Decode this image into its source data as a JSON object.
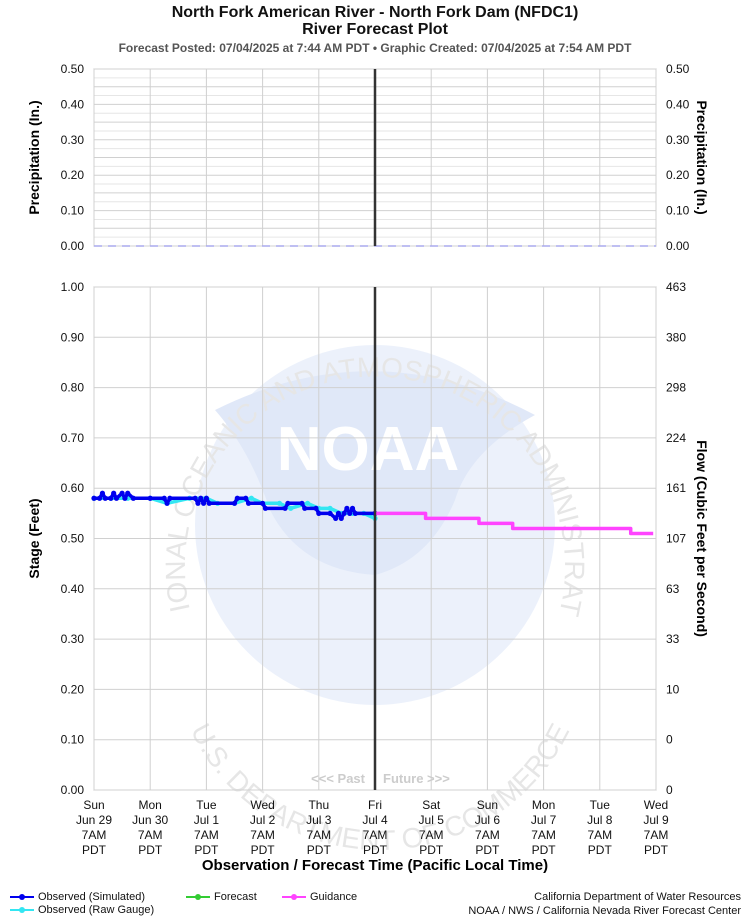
{
  "header": {
    "title": "North Fork American River - North Fork Dam (NFDC1)",
    "subtitle": "River Forecast Plot",
    "posted_line": "Forecast Posted: 07/04/2025 at 7:44 AM PDT  •  Graphic Created: 07/04/2025 at 7:54 AM PDT"
  },
  "chart_data": [
    {
      "type": "line",
      "name": "precipitation",
      "ylabel_left": "Precipitation (In.)",
      "ylabel_right": "Precipitation (In.)",
      "ylim": [
        0,
        0.5
      ],
      "yticks": [
        "0.50",
        "0.40",
        "0.30",
        "0.20",
        "0.10",
        "0.00"
      ],
      "series": [
        {
          "values": [
            0,
            0,
            0,
            0,
            0,
            0,
            0,
            0,
            0,
            0
          ],
          "color": "#aaaaee",
          "style": "dashed"
        }
      ],
      "grid": true
    },
    {
      "type": "line",
      "name": "stage-flow",
      "xlabel": "Observation / Forecast Time (Pacific Local Time)",
      "ylabel_left": "Stage (Feet)",
      "ylabel_right": "Flow (Cubic Feet per Second)",
      "ylim": [
        0,
        1.0
      ],
      "yticks_left": [
        "1.00",
        "0.90",
        "0.80",
        "0.70",
        "0.60",
        "0.50",
        "0.40",
        "0.30",
        "0.20",
        "0.10",
        "0.00"
      ],
      "yticks_right": [
        "463",
        "380",
        "298",
        "224",
        "161",
        "107",
        "63",
        "33",
        "10",
        "0",
        "0"
      ],
      "x_ticks": [
        {
          "day": "Sun",
          "date": "Jun 29",
          "time": "7AM",
          "tz": "PDT"
        },
        {
          "day": "Mon",
          "date": "Jun 30",
          "time": "7AM",
          "tz": "PDT"
        },
        {
          "day": "Tue",
          "date": "Jul 1",
          "time": "7AM",
          "tz": "PDT"
        },
        {
          "day": "Wed",
          "date": "Jul 2",
          "time": "7AM",
          "tz": "PDT"
        },
        {
          "day": "Thu",
          "date": "Jul 3",
          "time": "7AM",
          "tz": "PDT"
        },
        {
          "day": "Fri",
          "date": "Jul 4",
          "time": "7AM",
          "tz": "PDT"
        },
        {
          "day": "Sat",
          "date": "Jul 5",
          "time": "7AM",
          "tz": "PDT"
        },
        {
          "day": "Sun",
          "date": "Jul 6",
          "time": "7AM",
          "tz": "PDT"
        },
        {
          "day": "Mon",
          "date": "Jul 7",
          "time": "7AM",
          "tz": "PDT"
        },
        {
          "day": "Tue",
          "date": "Jul 8",
          "time": "7AM",
          "tz": "PDT"
        },
        {
          "day": "Wed",
          "date": "Jul 9",
          "time": "7AM",
          "tz": "PDT"
        }
      ],
      "now_marker_day": 5,
      "past_label": "<<< Past",
      "future_label": "Future >>>",
      "series": [
        {
          "name": "Observed (Raw Gauge)",
          "color": "#33e6f2",
          "points": [
            [
              0.0,
              0.58
            ],
            [
              0.3,
              0.58
            ],
            [
              0.6,
              0.58
            ],
            [
              1.0,
              0.58
            ],
            [
              1.3,
              0.57
            ],
            [
              1.7,
              0.58
            ],
            [
              2.0,
              0.58
            ],
            [
              2.2,
              0.57
            ],
            [
              2.5,
              0.57
            ],
            [
              2.8,
              0.58
            ],
            [
              3.0,
              0.57
            ],
            [
              3.3,
              0.57
            ],
            [
              3.5,
              0.56
            ],
            [
              3.8,
              0.57
            ],
            [
              4.0,
              0.56
            ],
            [
              4.2,
              0.56
            ],
            [
              4.4,
              0.55
            ],
            [
              4.6,
              0.55
            ],
            [
              4.8,
              0.55
            ],
            [
              5.0,
              0.54
            ]
          ]
        },
        {
          "name": "Observed (Simulated)",
          "color": "#0000ee",
          "points": [
            [
              0.0,
              0.58
            ],
            [
              0.1,
              0.58
            ],
            [
              0.15,
              0.59
            ],
            [
              0.2,
              0.58
            ],
            [
              0.3,
              0.58
            ],
            [
              0.35,
              0.59
            ],
            [
              0.4,
              0.58
            ],
            [
              0.5,
              0.59
            ],
            [
              0.55,
              0.58
            ],
            [
              0.6,
              0.59
            ],
            [
              0.7,
              0.58
            ],
            [
              1.0,
              0.58
            ],
            [
              1.25,
              0.58
            ],
            [
              1.3,
              0.57
            ],
            [
              1.35,
              0.58
            ],
            [
              1.8,
              0.58
            ],
            [
              1.85,
              0.57
            ],
            [
              1.9,
              0.58
            ],
            [
              1.95,
              0.57
            ],
            [
              2.0,
              0.58
            ],
            [
              2.05,
              0.57
            ],
            [
              2.5,
              0.57
            ],
            [
              2.55,
              0.58
            ],
            [
              2.7,
              0.58
            ],
            [
              2.75,
              0.57
            ],
            [
              3.0,
              0.57
            ],
            [
              3.05,
              0.56
            ],
            [
              3.4,
              0.56
            ],
            [
              3.45,
              0.57
            ],
            [
              3.7,
              0.57
            ],
            [
              3.75,
              0.56
            ],
            [
              3.95,
              0.56
            ],
            [
              4.0,
              0.55
            ],
            [
              4.2,
              0.55
            ],
            [
              4.3,
              0.54
            ],
            [
              4.35,
              0.55
            ],
            [
              4.4,
              0.54
            ],
            [
              4.45,
              0.55
            ],
            [
              4.5,
              0.56
            ],
            [
              4.55,
              0.55
            ],
            [
              4.6,
              0.56
            ],
            [
              4.65,
              0.55
            ],
            [
              5.0,
              0.55
            ]
          ]
        },
        {
          "name": "Forecast",
          "color": "#33cc33",
          "points": []
        },
        {
          "name": "Guidance",
          "color": "#ff44ff",
          "points": [
            [
              5.0,
              0.55
            ],
            [
              5.9,
              0.55
            ],
            [
              5.9,
              0.54
            ],
            [
              6.85,
              0.54
            ],
            [
              6.85,
              0.53
            ],
            [
              7.45,
              0.53
            ],
            [
              7.45,
              0.52
            ],
            [
              8.6,
              0.52
            ],
            [
              8.6,
              0.52
            ],
            [
              9.55,
              0.52
            ],
            [
              9.55,
              0.51
            ],
            [
              9.95,
              0.51
            ]
          ]
        }
      ],
      "grid": true
    }
  ],
  "legend": [
    {
      "label": "Observed (Simulated)",
      "color": "#0000ee"
    },
    {
      "label": "Observed (Raw Gauge)",
      "color": "#33e6f2"
    },
    {
      "label": "Forecast",
      "color": "#33cc33"
    },
    {
      "label": "Guidance",
      "color": "#ff44ff"
    }
  ],
  "credits": {
    "line1": "California Department of Water Resources",
    "line2": "NOAA / NWS / California Nevada River Forecast Center"
  },
  "watermark": {
    "center": "NOAA",
    "top_arc": "NATIONAL OCEANIC AND ATMOSPHERIC ADMINISTRATION",
    "bottom_arc": "U.S. DEPARTMENT OF COMMERCE"
  }
}
